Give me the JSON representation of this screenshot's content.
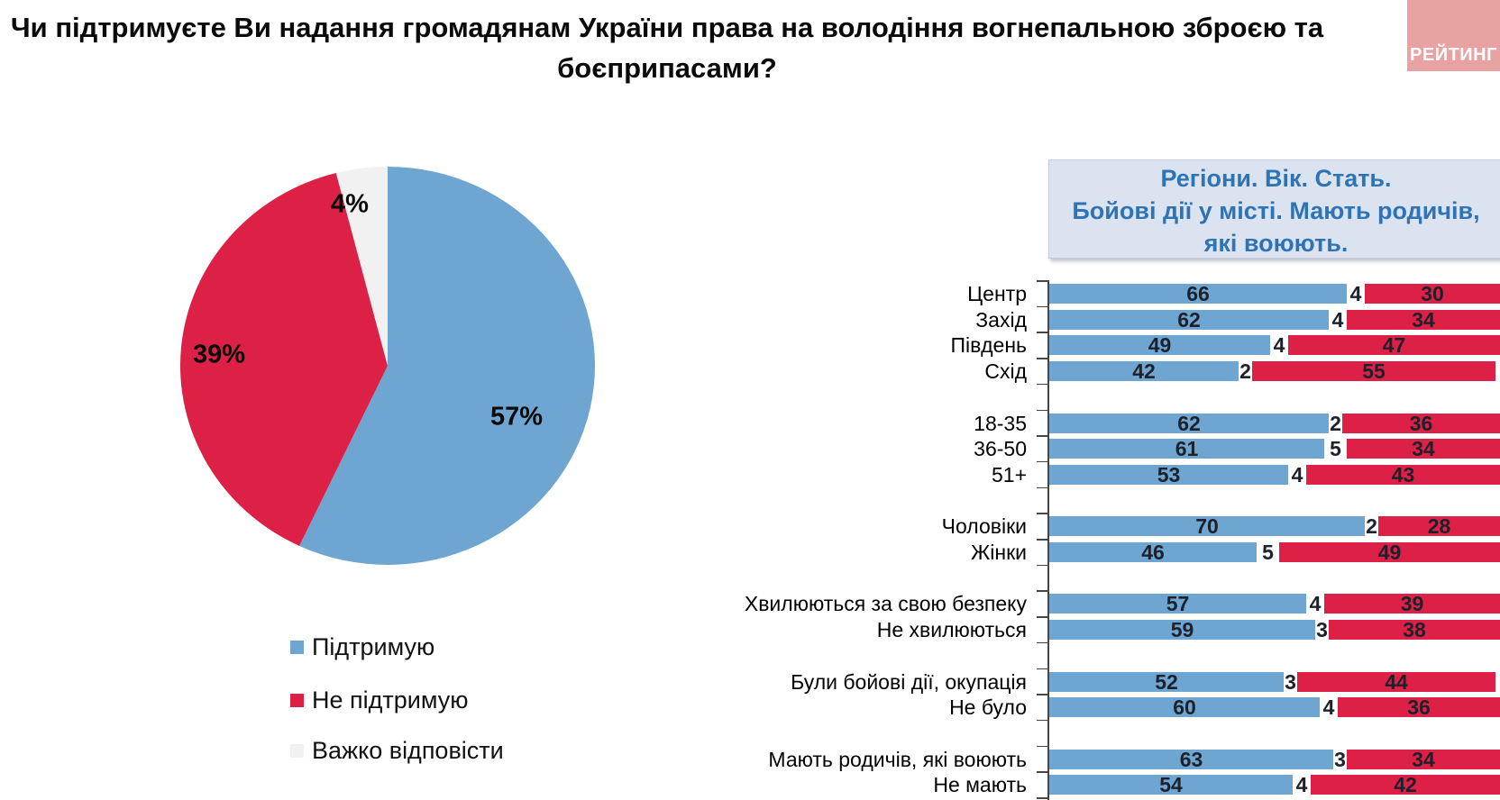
{
  "title": {
    "line1": "Чи підтримуєте Ви надання громадянам України права на володіння вогнепальною зброєю та",
    "line2": "боєприпасами?"
  },
  "logo": {
    "text": "РЕЙТИНГ",
    "bg": "#e8a2a2",
    "fg": "#ffffff"
  },
  "demographics_box": {
    "line1": "Регіони. Вік. Стать.",
    "line2": "Бойові дії у місті. Мають родичів,",
    "line3": "які воюють.",
    "bg": "#dce3f0",
    "fg": "#2e74b5"
  },
  "colors": {
    "support": "#6fa6d1",
    "oppose": "#dd2146",
    "hard_to_answer": "#f1f1f1",
    "axis": "#464646"
  },
  "chart_data": [
    {
      "type": "pie",
      "values": [
        57,
        39,
        4
      ],
      "labels": [
        "57%",
        "39%",
        "4%"
      ],
      "legend": [
        "Підтримую",
        "Не підтримую",
        "Важко відповісти"
      ],
      "colors": [
        "#6fa6d1",
        "#dd2146",
        "#f1f1f1"
      ],
      "start_angle_deg": 0,
      "direction": "clockwise"
    },
    {
      "type": "bar",
      "stacked": true,
      "series": [
        "Підтримую",
        "Важко відповісти",
        "Не підтримую"
      ],
      "series_colors": [
        "#6fa6d1",
        "#ffffff",
        "#dd2146"
      ],
      "xlim": [
        0,
        100
      ],
      "groups": [
        {
          "rows": [
            {
              "label": "Центр",
              "values": [
                66,
                4,
                30
              ]
            },
            {
              "label": "Захід",
              "values": [
                62,
                4,
                34
              ]
            },
            {
              "label": "Південь",
              "values": [
                49,
                4,
                47
              ]
            },
            {
              "label": "Схід",
              "values": [
                42,
                2,
                55
              ]
            }
          ]
        },
        {
          "rows": [
            {
              "label": "18-35",
              "values": [
                62,
                2,
                36
              ]
            },
            {
              "label": "36-50",
              "values": [
                61,
                5,
                34
              ]
            },
            {
              "label": "51+",
              "values": [
                53,
                4,
                43
              ]
            }
          ]
        },
        {
          "rows": [
            {
              "label": "Чоловіки",
              "values": [
                70,
                2,
                28
              ]
            },
            {
              "label": "Жінки",
              "values": [
                46,
                5,
                49
              ]
            }
          ]
        },
        {
          "rows": [
            {
              "label": "Хвилюються за свою безпеку",
              "values": [
                57,
                4,
                39
              ]
            },
            {
              "label": "Не хвилюються",
              "values": [
                59,
                3,
                38
              ]
            }
          ]
        },
        {
          "rows": [
            {
              "label": "Були бойові дії, окупація",
              "values": [
                52,
                3,
                44
              ]
            },
            {
              "label": "Не було",
              "values": [
                60,
                4,
                36
              ]
            }
          ]
        },
        {
          "rows": [
            {
              "label": "Мають родичів, які воюють",
              "values": [
                63,
                3,
                34
              ]
            },
            {
              "label": "Не мають",
              "values": [
                54,
                4,
                42
              ]
            }
          ]
        }
      ]
    }
  ]
}
